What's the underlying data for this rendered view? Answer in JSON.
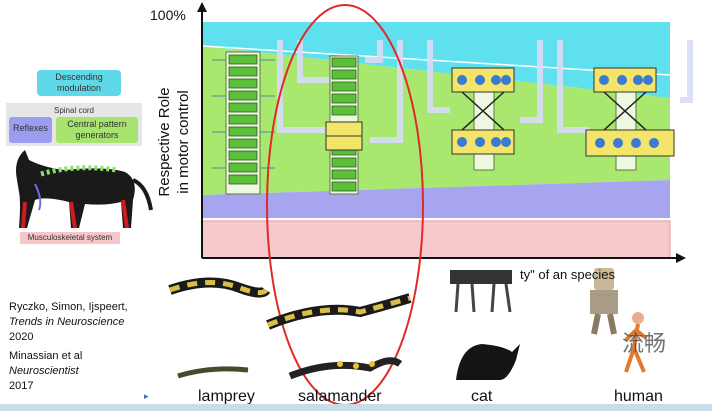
{
  "legend": {
    "descending": "Descending modulation",
    "spinal_cord": "Spinal cord",
    "reflexes": "Reflexes",
    "cpg": "Central pattern generators",
    "musculoskeletal": "Musculoskeletal system"
  },
  "references": {
    "ref1_authors": "Ryczko, Simon, Ijspeert,",
    "ref1_journal": "Trends in Neuroscience",
    "ref1_year": "2020",
    "ref2_authors": "Minassian et al",
    "ref2_journal": "Neuroscientist",
    "ref2_year": "2017"
  },
  "chart": {
    "y_max_label": "100%",
    "y_label_line1": "Respective Role",
    "y_label_line2": "in motor control",
    "x_label_fragment": "ty\" of an    species",
    "colors": {
      "descending": "#5fe0ee",
      "cpg": "#a9e86f",
      "reflexes": "#a7a5f0",
      "musculoskeletal": "#f6c9cc",
      "highlight": "#e02a2a"
    }
  },
  "species": [
    "lamprey",
    "salamander",
    "cat",
    "human"
  ],
  "watermark": "流畅",
  "icons": [
    "cat-skeleton-illustration",
    "lamprey-robot",
    "salamander-robot",
    "cat-robot",
    "humanoid-robot"
  ]
}
